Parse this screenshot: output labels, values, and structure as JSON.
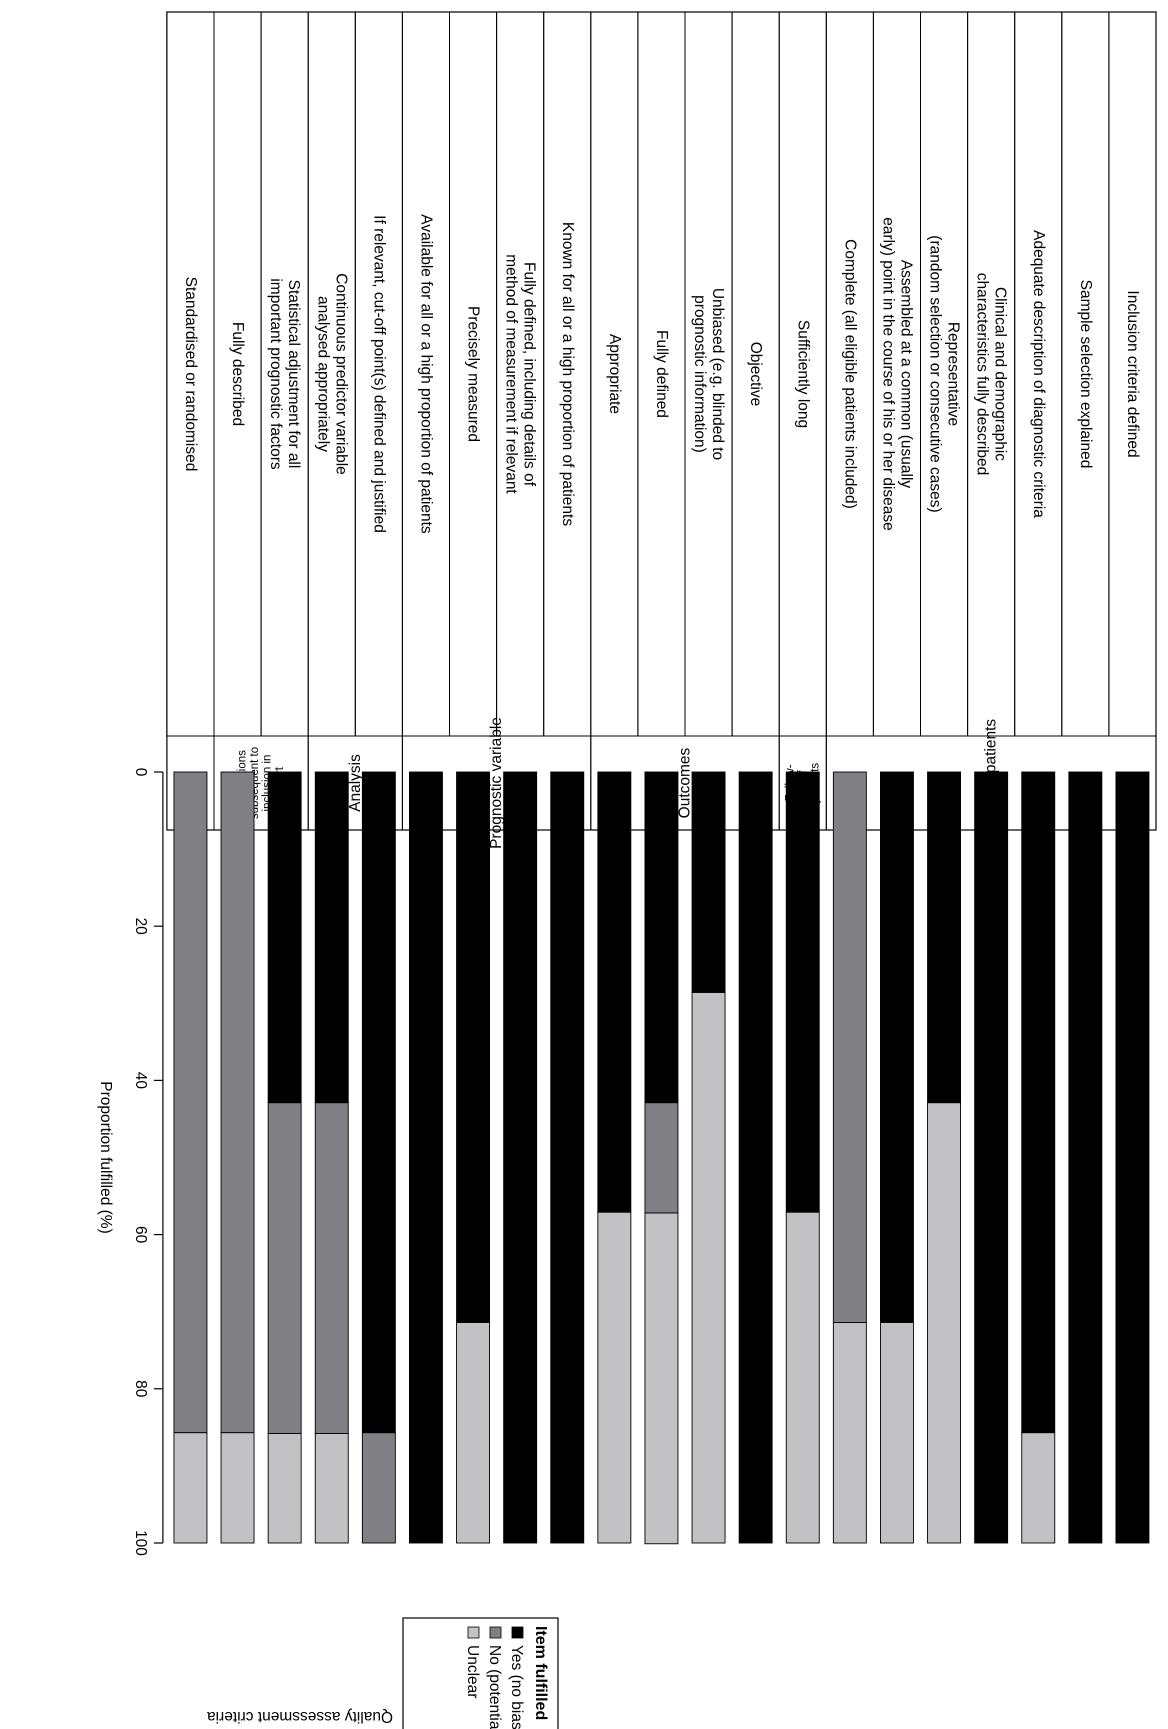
{
  "chart_data": {
    "type": "bar",
    "orientation": "stacked-horizontal, page rotated 90° clockwise",
    "xlabel": "Proportion fulfilled (%)",
    "side_label": "Quality assessment criteria",
    "xlim": [
      0,
      100
    ],
    "ticks": [
      "0",
      "20",
      "40",
      "60",
      "80",
      "100"
    ],
    "legend": {
      "title": "Item fulfilled",
      "items": [
        "Yes (no bias)",
        "No (potential bias)",
        "Unclear"
      ]
    },
    "colors": {
      "yes": "#000000",
      "no": "#808084",
      "unclear": "#c2c2c4"
    },
    "groups": [
      {
        "label": [
          "Sample of patients"
        ],
        "size": "normal",
        "count": 7
      },
      {
        "label": [
          "Follow-",
          "up of",
          "patients"
        ],
        "size": "small",
        "count": 1
      },
      {
        "label": [
          "Outcomes"
        ],
        "size": "normal",
        "count": 4
      },
      {
        "label": [
          "Prognostic variable"
        ],
        "size": "normal",
        "count": 4
      },
      {
        "label": [
          "Analysis"
        ],
        "size": "normal",
        "count": 2
      },
      {
        "label": [
          "Interventions",
          "subsequent to",
          "inclusion in",
          "cohort"
        ],
        "size": "small",
        "count": 2
      }
    ],
    "categories": [
      [
        "Inclusion criteria defined"
      ],
      [
        "Sample selection explained"
      ],
      [
        "Adequate description of diagnostic criteria"
      ],
      [
        "Clinical and demographic",
        "characteristics fully described"
      ],
      [
        "Representative",
        "(random selection or consecutive cases)"
      ],
      [
        "Assembled at a common (usually",
        "early) point in the course of his or her disease"
      ],
      [
        "Complete (all eligible patients included)"
      ],
      [
        "Sufficiently long"
      ],
      [
        "Objective"
      ],
      [
        "Unbiased (e.g. blinded to",
        "prognostic information)"
      ],
      [
        "Fully defined"
      ],
      [
        "Appropriate"
      ],
      [
        "Known for all or a high proportion of patients"
      ],
      [
        "Fully defined, including details of",
        "method of measurement if relevant"
      ],
      [
        "Precisely measured"
      ],
      [
        "Available for all or a high proportion of patients"
      ],
      [
        "If relevant,  cut-off point(s) defined and justified"
      ],
      [
        "Continuous predictor variable",
        "analysed appropriately"
      ],
      [
        "Statistical adjustment for all",
        "important prognostic factors"
      ],
      [
        "Fully described"
      ],
      [
        "Standardised or randomised"
      ]
    ],
    "series": [
      {
        "name": "Yes (no bias)",
        "values": [
          100,
          100,
          85.7,
          100,
          42.9,
          71.4,
          0,
          57.1,
          100,
          28.6,
          42.9,
          57.1,
          100,
          100,
          71.4,
          100,
          85.7,
          42.9,
          42.9,
          0,
          0
        ]
      },
      {
        "name": "No (potential bias)",
        "values": [
          0,
          0,
          0,
          0,
          0,
          0,
          71.4,
          0,
          0,
          0,
          14.3,
          0,
          0,
          0,
          0,
          0,
          14.3,
          42.9,
          42.9,
          85.7,
          85.7
        ]
      },
      {
        "name": "Unclear",
        "values": [
          0,
          0,
          14.3,
          0,
          57.1,
          28.6,
          28.6,
          42.9,
          0,
          71.4,
          42.9,
          42.9,
          0,
          0,
          28.6,
          0,
          0,
          14.2,
          14.2,
          14.3,
          14.3
        ]
      }
    ]
  }
}
